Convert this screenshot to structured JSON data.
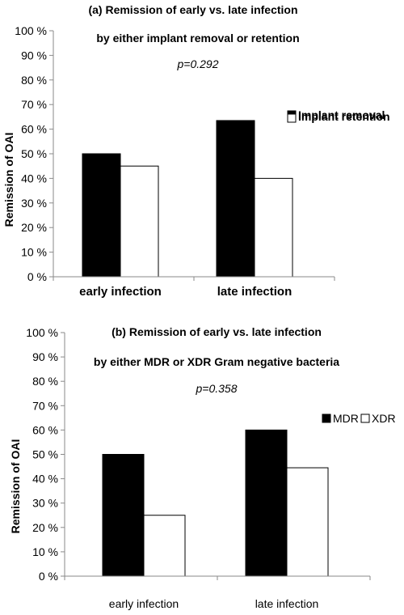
{
  "chart_data": [
    {
      "type": "bar",
      "title": "(a)   Remission  of early vs. late infection",
      "subtitle": "by either  implant  removal or retention",
      "annotation": "p=0.292",
      "ylabel": "Remission of OAI",
      "xlabel": "",
      "categories": [
        "early infection",
        "late infection"
      ],
      "yticks": [
        "0 %",
        "10 %",
        "20 %",
        "30 %",
        "40 %",
        "50 %",
        "60 %",
        "70 %",
        "80 %",
        "90 %",
        "100 %"
      ],
      "ylim": [
        0,
        100
      ],
      "grid": false,
      "legend_position": "right",
      "series": [
        {
          "name": "Implant removal",
          "values": [
            50,
            63.5
          ],
          "color": "#000000"
        },
        {
          "name": "Implant retention",
          "values": [
            45,
            40
          ],
          "color": "#ffffff"
        }
      ]
    },
    {
      "type": "bar",
      "title": "(b)   Remission of early vs. late infection",
      "subtitle": "by either MDR or XDR Gram negative bacteria",
      "annotation": "p=0.358",
      "ylabel": "Remission of OAI",
      "xlabel": "",
      "categories": [
        "early infection",
        "late infection"
      ],
      "yticks": [
        "0 %",
        "10 %",
        "20 %",
        "30 %",
        "40 %",
        "50 %",
        "60 %",
        "70 %",
        "80 %",
        "90 %",
        "100 %"
      ],
      "ylim": [
        0,
        100
      ],
      "grid": false,
      "legend_position": "top-right",
      "series": [
        {
          "name": "MDR",
          "values": [
            50,
            60
          ],
          "color": "#000000"
        },
        {
          "name": "XDR",
          "values": [
            25,
            44.5
          ],
          "color": "#ffffff"
        }
      ]
    }
  ]
}
